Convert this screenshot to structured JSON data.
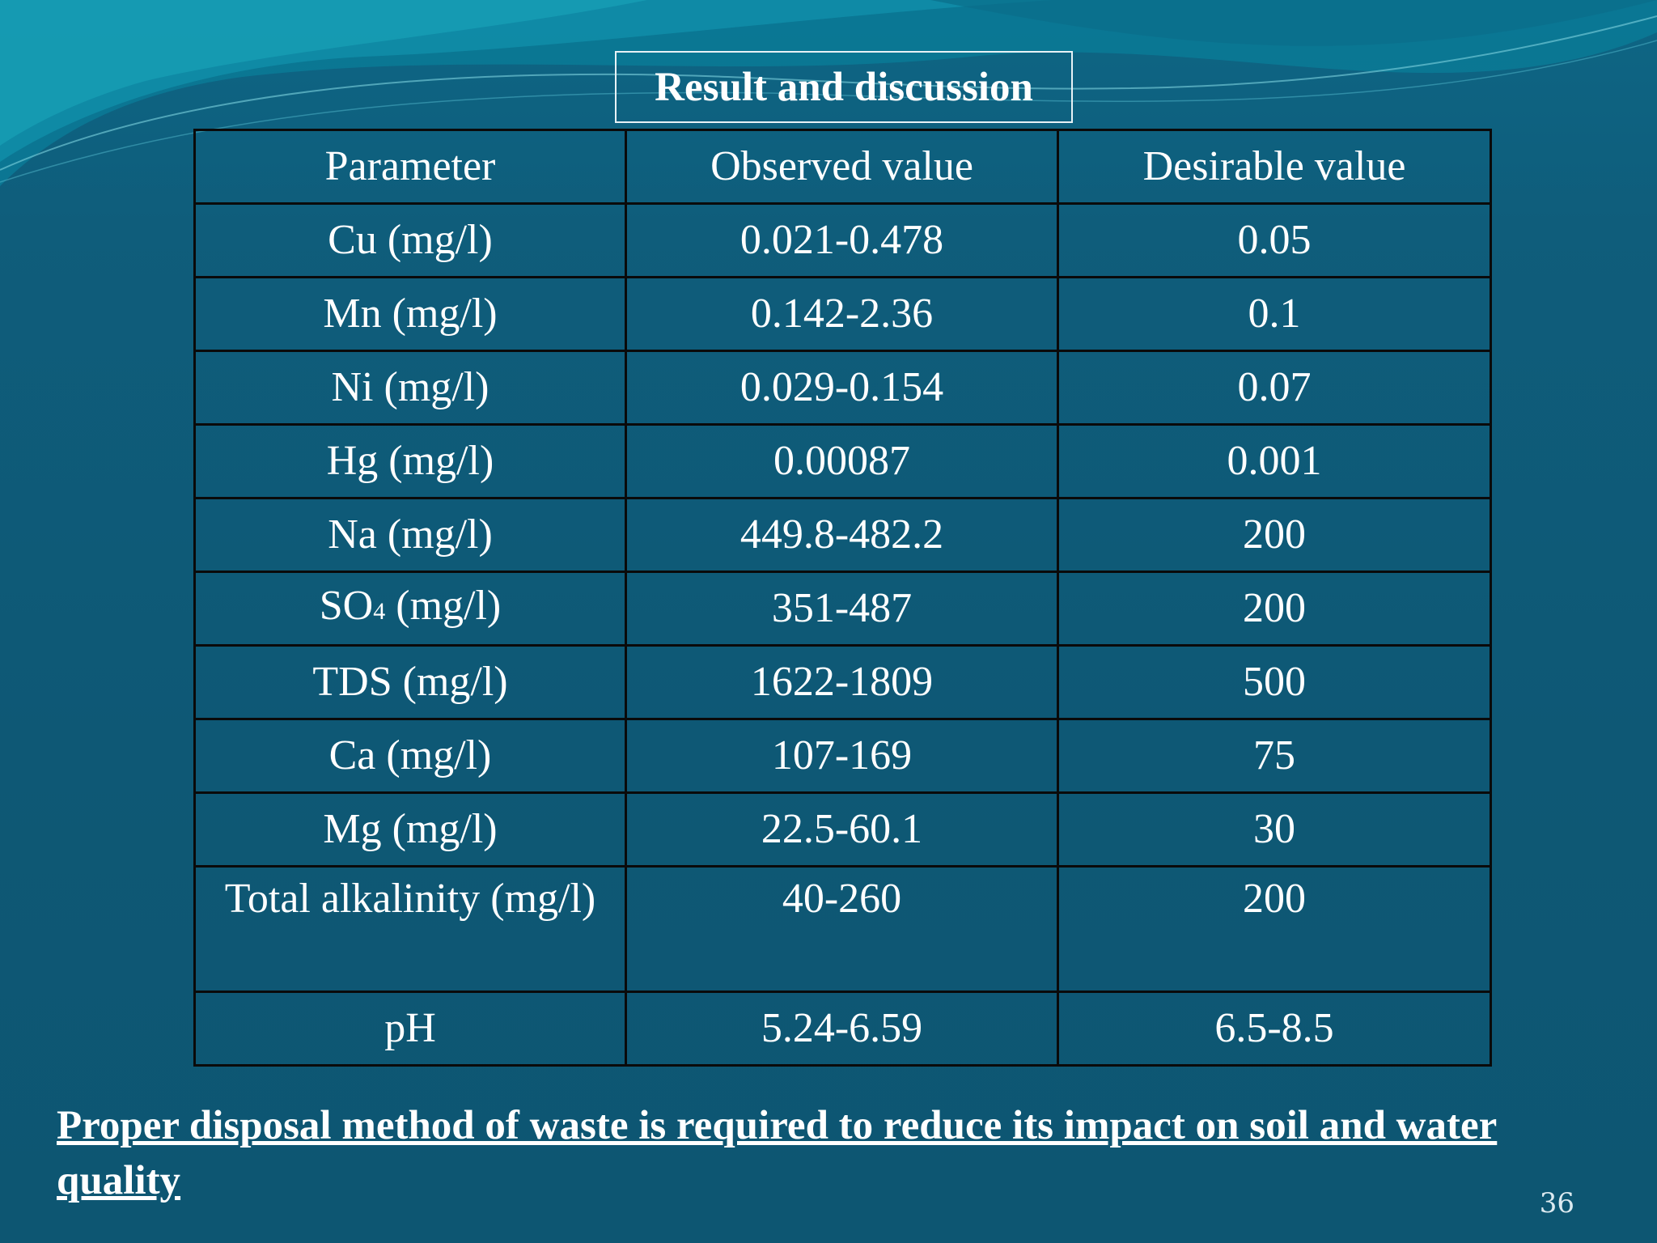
{
  "slide": {
    "title": "Result and discussion",
    "table": {
      "headers": [
        "Parameter",
        "Observed value",
        "Desirable value"
      ],
      "rows": [
        {
          "parameter": "Cu (mg/l)",
          "observed": "0.021-0.478",
          "desirable": "0.05"
        },
        {
          "parameter": "Mn (mg/l)",
          "observed": "0.142-2.36",
          "desirable": "0.1"
        },
        {
          "parameter": "Ni (mg/l)",
          "observed": "0.029-0.154",
          "desirable": "0.07"
        },
        {
          "parameter": "Hg (mg/l)",
          "observed": "0.00087",
          "desirable": "0.001"
        },
        {
          "parameter": "Na (mg/l)",
          "observed": "449.8-482.2",
          "desirable": "200"
        },
        {
          "parameter_main": "SO",
          "parameter_sub": "4",
          "parameter_unit": " (mg/l)",
          "observed": "351-487",
          "desirable": "200"
        },
        {
          "parameter": "TDS (mg/l)",
          "observed": "1622-1809",
          "desirable": "500"
        },
        {
          "parameter": "Ca (mg/l)",
          "observed": "107-169",
          "desirable": "75"
        },
        {
          "parameter": "Mg (mg/l)",
          "observed": "22.5-60.1",
          "desirable": "30"
        },
        {
          "parameter": "Total alkalinity (mg/l)",
          "observed": "40-260",
          "desirable": "200"
        },
        {
          "parameter": "pH",
          "observed": "5.24-6.59",
          "desirable": "6.5-8.5"
        }
      ]
    },
    "conclusion": "Proper disposal method of waste is required to reduce its impact on soil  and water quality",
    "page_number": "36",
    "colors": {
      "background": "#0f5875",
      "wave_light": "#1a9fb8",
      "text": "#ffffff",
      "table_border": "#0a0a0a"
    }
  }
}
